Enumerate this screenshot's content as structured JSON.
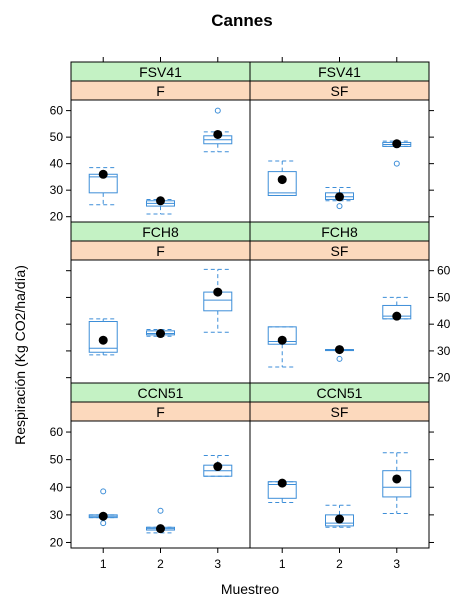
{
  "chart_data": {
    "type": "boxplot",
    "title": "Cannes",
    "xlabel": "Muestreo",
    "ylabel": "Respiración (Kg CO2/ha/día)",
    "categories": [
      "1",
      "2",
      "3"
    ],
    "ylim": [
      18,
      64
    ],
    "yticks": [
      20,
      30,
      40,
      50,
      60
    ],
    "colors": {
      "box": "#3d8ed8",
      "strip_top": "#c4f2c4",
      "strip_bottom": "#fcd9bd",
      "mean": "#000000"
    },
    "panels": [
      {
        "row": 0,
        "col": 0,
        "variety": "FSV41",
        "treatment": "F",
        "boxes": [
          {
            "low": 24.5,
            "q1": 29,
            "median": 35,
            "q3": 36,
            "high": 38.5,
            "mean": 36,
            "outliers": []
          },
          {
            "low": 21,
            "q1": 24,
            "median": 25,
            "q3": 26,
            "high": 26.5,
            "mean": 26,
            "outliers": []
          },
          {
            "low": 44.5,
            "q1": 47.5,
            "median": 49,
            "q3": 50.5,
            "high": 52,
            "mean": 51,
            "outliers": [
              60
            ]
          }
        ]
      },
      {
        "row": 0,
        "col": 1,
        "variety": "FSV41",
        "treatment": "SF",
        "boxes": [
          {
            "low": 28,
            "q1": 28,
            "median": 29,
            "q3": 37,
            "high": 41,
            "mean": 34,
            "outliers": []
          },
          {
            "low": 26,
            "q1": 26.5,
            "median": 27.5,
            "q3": 29,
            "high": 31,
            "mean": 27.5,
            "outliers": [
              24
            ]
          },
          {
            "low": 46.5,
            "q1": 46.5,
            "median": 47.2,
            "q3": 48,
            "high": 48.5,
            "mean": 47.5,
            "outliers": [
              40
            ]
          }
        ]
      },
      {
        "row": 1,
        "col": 0,
        "variety": "FCH8",
        "treatment": "F",
        "boxes": [
          {
            "low": 28.5,
            "q1": 29.5,
            "median": 31,
            "q3": 41,
            "high": 42,
            "mean": 34,
            "outliers": []
          },
          {
            "low": 35.5,
            "q1": 36,
            "median": 36.5,
            "q3": 37.5,
            "high": 38,
            "mean": 36.5,
            "outliers": []
          },
          {
            "low": 37,
            "q1": 45,
            "median": 49,
            "q3": 52,
            "high": 60.5,
            "mean": 52,
            "outliers": []
          }
        ]
      },
      {
        "row": 1,
        "col": 1,
        "variety": "FCH8",
        "treatment": "SF",
        "boxes": [
          {
            "low": 24,
            "q1": 32.5,
            "median": 33.5,
            "q3": 39,
            "high": 39,
            "mean": 34,
            "outliers": []
          },
          {
            "low": 30.5,
            "q1": 30.5,
            "median": 30.5,
            "q3": 30.5,
            "high": 30.5,
            "mean": 30.5,
            "outliers": [
              27
            ]
          },
          {
            "low": 42,
            "q1": 42,
            "median": 43,
            "q3": 47,
            "high": 50,
            "mean": 43,
            "outliers": []
          }
        ]
      },
      {
        "row": 2,
        "col": 0,
        "variety": "CCN51",
        "treatment": "F",
        "boxes": [
          {
            "low": 29,
            "q1": 29,
            "median": 29.5,
            "q3": 30,
            "high": 30,
            "mean": 29.5,
            "outliers": [
              38.5,
              27
            ]
          },
          {
            "low": 23.5,
            "q1": 24.5,
            "median": 25,
            "q3": 25.5,
            "high": 25.5,
            "mean": 25,
            "outliers": [
              31.5
            ]
          },
          {
            "low": 44,
            "q1": 44,
            "median": 46,
            "q3": 48,
            "high": 51.5,
            "mean": 47.5,
            "outliers": []
          }
        ]
      },
      {
        "row": 2,
        "col": 1,
        "variety": "CCN51",
        "treatment": "SF",
        "boxes": [
          {
            "low": 34.5,
            "q1": 36,
            "median": 41,
            "q3": 42,
            "high": 42,
            "mean": 41.5,
            "outliers": []
          },
          {
            "low": 25.5,
            "q1": 26,
            "median": 27,
            "q3": 30,
            "high": 33.5,
            "mean": 28.5,
            "outliers": []
          },
          {
            "low": 30.5,
            "q1": 36.5,
            "median": 40,
            "q3": 46,
            "high": 52.5,
            "mean": 43,
            "outliers": []
          }
        ]
      }
    ]
  }
}
